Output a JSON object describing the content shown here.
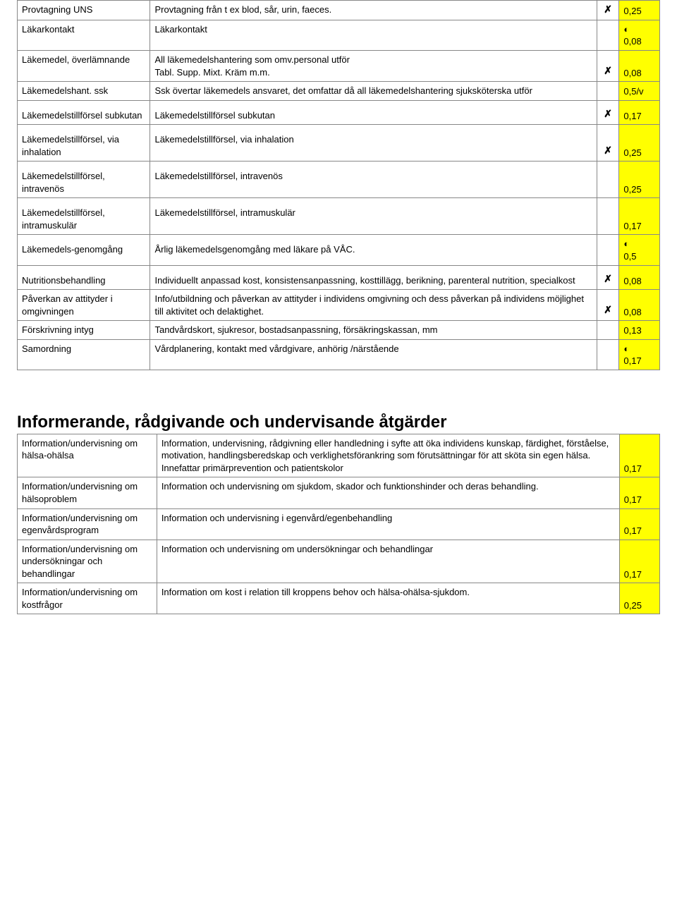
{
  "icons": {
    "x": "✗",
    "half": "◐"
  },
  "colors": {
    "highlight": "#ffff00"
  },
  "table1": {
    "rows": [
      {
        "label": "Provtagning UNS",
        "desc": "Provtagning från t ex blod, sår, urin, faeces.",
        "mark": "x",
        "val": "0,25",
        "hl": true
      },
      {
        "label": "Läkarkontakt",
        "desc": "Läkarkontakt",
        "mark": "",
        "val_icon": "half",
        "val": "0,08",
        "hl": true
      },
      {
        "label": "Läkemedel, överlämnande",
        "desc": "All läkemedelshantering som omv.personal utför\nTabl. Supp. Mixt. Kräm m.m.",
        "mark": "x",
        "val": "0,08",
        "hl": true
      },
      {
        "label": "Läkemedelshant. ssk",
        "desc": "Ssk övertar läkemedels ansvaret, det omfattar då all läkemedelshantering sjuksköterska utför",
        "mark": "",
        "val": "0,5/v",
        "hl": true
      },
      {
        "label": "Läkemedelstillförsel subkutan",
        "desc": "Läkemedelstillförsel subkutan",
        "mark": "x",
        "val": "0,17",
        "hl": true,
        "spaced": true
      },
      {
        "label": "Läkemedelstillförsel, via inhalation",
        "desc": "Läkemedelstillförsel, via inhalation",
        "mark": "x",
        "val": "0,25",
        "hl": true,
        "spaced": true
      },
      {
        "label": "Läkemedelstillförsel, intravenös",
        "desc": "Läkemedelstillförsel, intravenös",
        "mark": "",
        "val": "0,25",
        "hl": true,
        "spaced": true
      },
      {
        "label": "Läkemedelstillförsel, intramuskulär",
        "desc": "Läkemedelstillförsel, intramuskulär",
        "mark": "",
        "val": "0,17",
        "hl": true,
        "spaced": true
      },
      {
        "label": "Läkemedels-genomgång",
        "desc": "Årlig läkemedelsgenomgång med läkare på VÅC.",
        "mark": "",
        "val_icon": "half",
        "val": "0,5",
        "hl": true,
        "spaced": true
      },
      {
        "label": "Nutritionsbehandling",
        "desc": "Individuellt anpassad kost, konsistensanpassning, kosttillägg, berikning, parenteral nutrition, specialkost",
        "mark": "x",
        "val": "0,08",
        "hl": true,
        "spaced": true
      },
      {
        "label": "Påverkan av attityder i omgivningen",
        "desc": "Info/utbildning och påverkan av attityder i individens omgivning och dess påverkan på individens möjlighet till aktivitet och delaktighet.",
        "mark": "x",
        "val": "0,08",
        "hl": true
      },
      {
        "label": "Förskrivning intyg",
        "desc": "Tandvårdskort, sjukresor, bostadsanpassning, försäkringskassan, mm",
        "mark": "",
        "val": "0,13",
        "hl": true
      },
      {
        "label": "Samordning",
        "desc": "Vårdplanering, kontakt med vårdgivare, anhörig /närstående",
        "mark": "",
        "val_icon": "half",
        "val": "0,17",
        "hl": true
      }
    ]
  },
  "section2": {
    "title": "Informerande, rådgivande och undervisande åtgärder",
    "rows": [
      {
        "label": "Information/undervisning om hälsa-ohälsa",
        "desc": "Information, undervisning, rådgivning eller handledning i syfte att öka individens kunskap, färdighet, förståelse, motivation, handlingsberedskap och verklighetsförankring som förutsättningar för att sköta sin egen hälsa. Innefattar primärprevention och patientskolor",
        "val": "0,17",
        "hl": true
      },
      {
        "label": "Information/undervisning om hälsoproblem",
        "desc": "Information och undervisning om sjukdom, skador och funktionshinder och deras behandling.",
        "val": "0,17",
        "hl": true
      },
      {
        "label": "Information/undervisning om egenvårdsprogram",
        "desc": "Information och undervisning i egenvård/egenbehandling",
        "val": "0,17",
        "hl": true
      },
      {
        "label": "Information/undervisning om undersökningar och behandlingar",
        "desc": "Information och undervisning om undersökningar och behandlingar",
        "val": "0,17",
        "hl": true
      },
      {
        "label": "Information/undervisning om kostfrågor",
        "desc": "Information om kost i relation till kroppens behov och hälsa-ohälsa-sjukdom.",
        "val": "0,25",
        "hl": true
      }
    ]
  }
}
